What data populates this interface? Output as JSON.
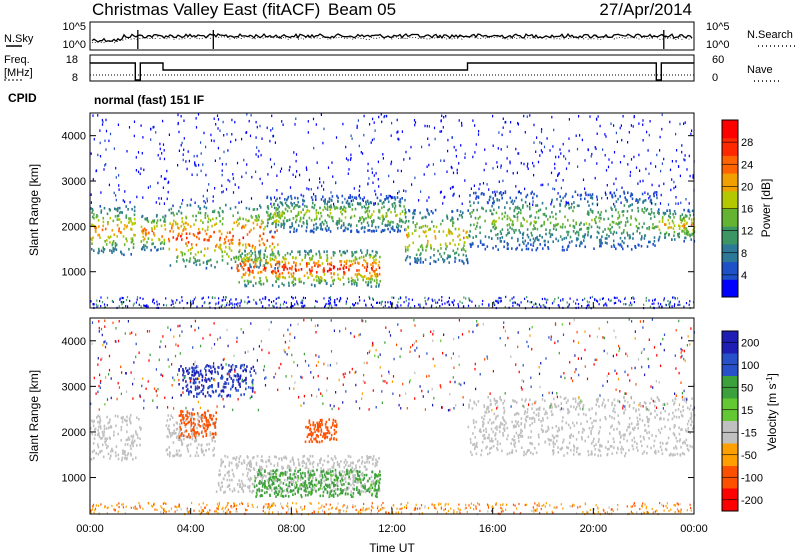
{
  "header": {
    "station": "Christmas Valley East (fitACF)",
    "beam": "Beam 05",
    "date": "27/Apr/2014"
  },
  "noise_panel": {
    "left_label": "N.Sky",
    "right_label": "N.Search",
    "left_ticks": [
      "10^5",
      "10^0"
    ],
    "right_ticks": [
      "10^5",
      "10^0"
    ]
  },
  "freq_panel": {
    "left_label_line1": "Freq.",
    "left_label_line2": "[MHz]",
    "right_label": "Nave",
    "left_ticks": [
      "18",
      "8"
    ],
    "right_ticks": [
      "60",
      "0"
    ]
  },
  "cpid": {
    "label": "CPID",
    "value": "normal (fast) 151 IF"
  },
  "chart_data": [
    {
      "type": "heatmap",
      "name": "Power",
      "ylabel": "Slant Range [km]",
      "xlabel": "",
      "ylim": [
        200,
        4500
      ],
      "xlim_hours": [
        0,
        24
      ],
      "yticks": [
        "1000",
        "2000",
        "3000",
        "4000"
      ],
      "colorbar": {
        "label": "Power [dB]",
        "ticks": [
          "4",
          "8",
          "12",
          "16",
          "20",
          "24",
          "28"
        ],
        "range": [
          0,
          32
        ],
        "colors": [
          "#0000ff",
          "#1e50c8",
          "#2d7896",
          "#3c9664",
          "#64b432",
          "#b4c800",
          "#f0a000",
          "#ff6400",
          "#ff2800",
          "#ff0000"
        ]
      },
      "features": [
        {
          "hours": [
            0,
            1.8
          ],
          "range_km": [
            1400,
            2500
          ],
          "peak_db": 24
        },
        {
          "hours": [
            2.0,
            3.0
          ],
          "range_km": [
            1500,
            2300
          ],
          "peak_db": 26
        },
        {
          "hours": [
            3.1,
            7.5
          ],
          "range_km": [
            1100,
            2500
          ],
          "peak_db": 28
        },
        {
          "hours": [
            5.8,
            11.5
          ],
          "range_km": [
            700,
            1500
          ],
          "peak_db": 30
        },
        {
          "hours": [
            7.0,
            12.5
          ],
          "range_km": [
            1900,
            2700
          ],
          "peak_db": 18
        },
        {
          "hours": [
            12.5,
            15.0
          ],
          "range_km": [
            1200,
            2400
          ],
          "peak_db": 22
        },
        {
          "hours": [
            15.0,
            22.5
          ],
          "range_km": [
            1500,
            2800
          ],
          "peak_db": 16
        },
        {
          "hours": [
            22.5,
            24.0
          ],
          "range_km": [
            1700,
            2400
          ],
          "peak_db": 22
        }
      ]
    },
    {
      "type": "heatmap",
      "name": "Velocity",
      "ylabel": "Slant Range [km]",
      "xlabel": "Time UT",
      "ylim": [
        200,
        4500
      ],
      "xlim_hours": [
        0,
        24
      ],
      "yticks": [
        "1000",
        "2000",
        "3000",
        "4000"
      ],
      "xticks": [
        "00:00",
        "04:00",
        "08:00",
        "12:00",
        "16:00",
        "20:00",
        "00:00"
      ],
      "colorbar": {
        "label": "Velocity [m s^-1]",
        "ticks": [
          "200",
          "100",
          "50",
          "15",
          "-15",
          "-50",
          "-100",
          "-200"
        ],
        "colors": [
          "#1e1eb4",
          "#2850c8",
          "#3ca03c",
          "#64c832",
          "#c0c0c0",
          "#ffa000",
          "#ff5000",
          "#ff0000"
        ]
      },
      "features": [
        {
          "hours": [
            0,
            2.0
          ],
          "range_km": [
            1400,
            2400
          ],
          "velocity_ms": 0
        },
        {
          "hours": [
            3.0,
            5.0
          ],
          "range_km": [
            1500,
            2400
          ],
          "velocity_ms": 0
        },
        {
          "hours": [
            3.5,
            5.0
          ],
          "range_km": [
            1900,
            2500
          ],
          "velocity_ms": -60
        },
        {
          "hours": [
            5.0,
            11.5
          ],
          "range_km": [
            700,
            1500
          ],
          "velocity_ms": 0
        },
        {
          "hours": [
            6.5,
            11.5
          ],
          "range_km": [
            600,
            1200
          ],
          "velocity_ms": 40
        },
        {
          "hours": [
            8.5,
            9.8
          ],
          "range_km": [
            1800,
            2300
          ],
          "velocity_ms": -80
        },
        {
          "hours": [
            15.0,
            24.0
          ],
          "range_km": [
            1500,
            2800
          ],
          "velocity_ms": 0
        },
        {
          "hours": [
            3.5,
            6.5
          ],
          "range_km": [
            2800,
            3500
          ],
          "velocity_ms": 150
        }
      ]
    }
  ]
}
